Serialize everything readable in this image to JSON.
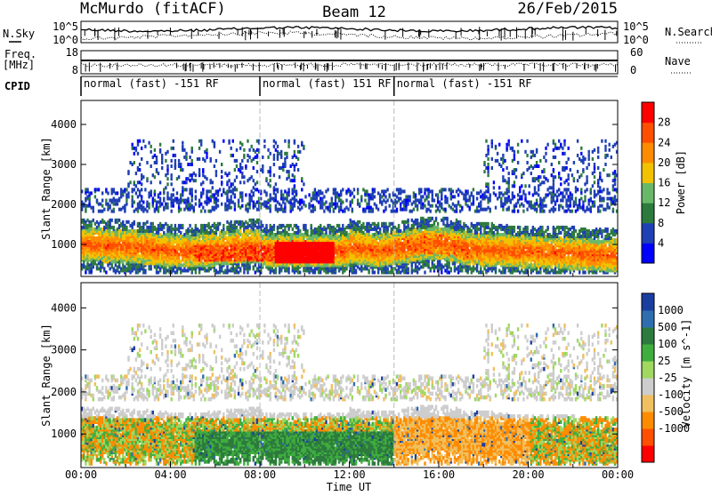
{
  "header": {
    "station": "McMurdo (fitACF)",
    "beam": "Beam 12",
    "date": "26/Feb/2015"
  },
  "noise_panel": {
    "left_label": "N.Sky",
    "right_label": "N.Search",
    "left_ticks": [
      "10^5",
      "10^0"
    ],
    "right_ticks": [
      "10^5",
      "10^0"
    ]
  },
  "freq_panel": {
    "left_label_1": "Freq.",
    "left_label_2": "[MHz]",
    "right_label": "Nave",
    "left_ticks": [
      "18",
      "8"
    ],
    "right_ticks": [
      "60",
      "0"
    ]
  },
  "cpid_panel": {
    "label": "CPID",
    "segments": [
      {
        "text": "normal (fast) -151 RF",
        "start": 0.0,
        "end": 8.0
      },
      {
        "text": "normal (fast) 151 RF",
        "start": 8.0,
        "end": 14.0
      },
      {
        "text": "normal (fast) -151 RF",
        "start": 14.0,
        "end": 24.0
      }
    ]
  },
  "colors": {
    "power_scale": [
      "#0000ff",
      "#1f3fb4",
      "#2d7a3d",
      "#69b869",
      "#f2c200",
      "#ff8c00",
      "#ff4f00",
      "#ff0000"
    ],
    "velocity_scale": [
      "#ff0000",
      "#ff4f00",
      "#ff8c00",
      "#f0c060",
      "#cdcdcd",
      "#a0d860",
      "#3fae3f",
      "#2d7a3d",
      "#2e6eb0",
      "#1a3ea0"
    ]
  },
  "x_axis": {
    "title": "Time UT",
    "ticks": [
      "00:00",
      "04:00",
      "08:00",
      "12:00",
      "16:00",
      "20:00",
      "00:00"
    ]
  },
  "chart_data": [
    {
      "type": "heatmap",
      "name": "power",
      "ylabel": "Slant Range [km]",
      "yticks": [
        "1000",
        "2000",
        "3000",
        "4000"
      ],
      "ylim": [
        200,
        4600
      ],
      "xlim_hours": [
        0,
        24
      ],
      "colorbar_label": "Power [dB]",
      "colorbar_ticks": [
        "4",
        "8",
        "12",
        "16",
        "20",
        "24",
        "28"
      ],
      "vlines_hours": [
        8.0,
        14.0
      ]
    },
    {
      "type": "heatmap",
      "name": "velocity",
      "ylabel": "Slant Range [km]",
      "yticks": [
        "1000",
        "2000",
        "3000",
        "4000"
      ],
      "ylim": [
        200,
        4600
      ],
      "xlim_hours": [
        0,
        24
      ],
      "colorbar_label": "Velocity [m s^-1]",
      "colorbar_ticks": [
        "1000",
        "500",
        "100",
        "25",
        "-25",
        "-100",
        "-500",
        "-1000"
      ],
      "vlines_hours": [
        8.0,
        14.0
      ]
    }
  ]
}
